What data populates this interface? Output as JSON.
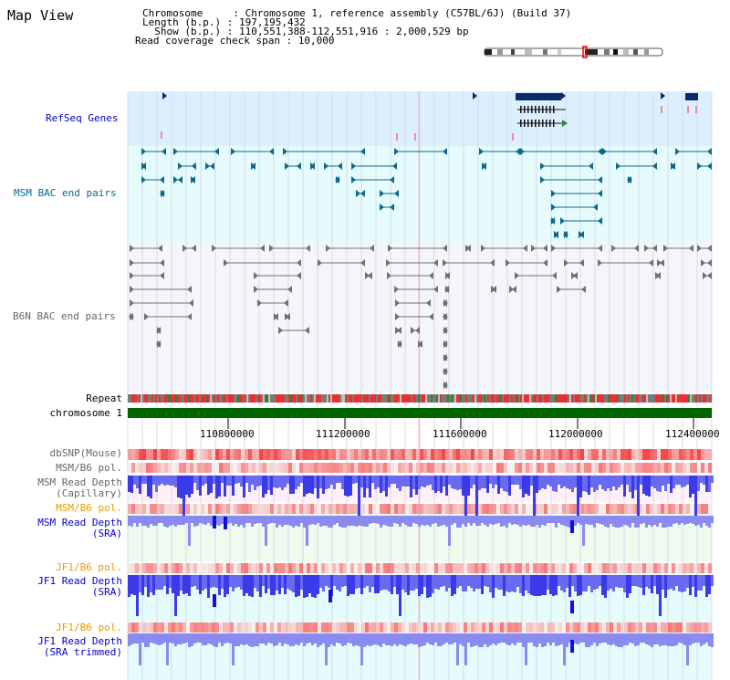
{
  "page": {
    "title": "Map View",
    "info_lines": [
      "Chromosome     : Chromosome 1, reference assembly (C57BL/6J) (Build 37)",
      "Length (b.p.) : 197,195,432",
      "  Show (b.p.) : 110,551,388-112,551,916 : 2,000,529 bp",
      "Read coverage check span : 10,000"
    ]
  },
  "tracks": {
    "refseq": "RefSeq Genes",
    "msm_bac": "MSM BAC end pairs",
    "b6n_bac": "B6N BAC end pairs",
    "repeat": "Repeat",
    "chromosome": "chromosome 1",
    "dbsnp": "dbSNP(Mouse)",
    "msm_pol1": "MSM/B6 pol.",
    "msm_depth_cap_1": "MSM Read Depth",
    "msm_depth_cap_2": "(Capillary)",
    "msm_pol2": "MSM/B6 pol.",
    "msm_depth_sra_1": "MSM Read Depth",
    "msm_depth_sra_2": "(SRA)",
    "jf1_pol1": "JF1/B6 pol.",
    "jf1_depth_sra_1": "JF1 Read Depth",
    "jf1_depth_sra_2": "(SRA)",
    "jf1_pol2": "JF1/B6 pol.",
    "jf1_depth_trim_1": "JF1 Read Depth",
    "jf1_depth_trim_2": "(SRA trimmed)"
  },
  "axis": {
    "ticks": [
      "110800000",
      "111200000",
      "111600000",
      "112000000",
      "112400000"
    ]
  },
  "colors": {
    "refseq_bg": "#dcefff",
    "msm_bg": "#e6fbfb",
    "b6n_bg": "#f4f6fa",
    "chromosome": "#006600",
    "depth_blue": "#2a2aee",
    "pol_red": "#ee2020",
    "msm_teal": "#0a6a88",
    "grey_pair": "#707070"
  }
}
